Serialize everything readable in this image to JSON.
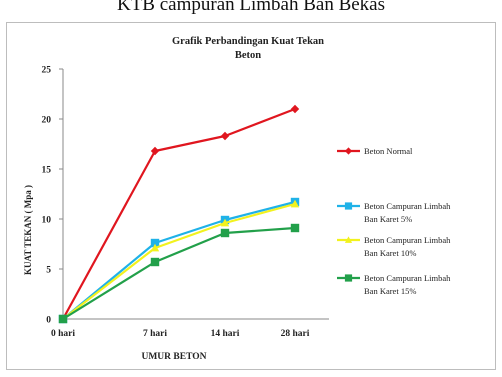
{
  "caption": "KTB campuran Limbah Ban Bekas",
  "chart_data": {
    "type": "line",
    "title": "Grafik Perbandingan  Kuat Tekan Beton",
    "title_lines": [
      "Grafik Perbandingan  Kuat Tekan",
      "Beton"
    ],
    "xlabel": "UMUR  BETON",
    "ylabel": "KUAT  TEKAN  ( Mpa  )",
    "categories": [
      "0 hari",
      "7 hari",
      "14 hari",
      "28 hari"
    ],
    "ylim": [
      0,
      25
    ],
    "yticks": [
      "0",
      "5",
      "10",
      "15",
      "20",
      "25"
    ],
    "grid": false,
    "legend_position": "right",
    "series": [
      {
        "name": "Beton Normal",
        "name_lines": [
          "Beton Normal"
        ],
        "values": [
          0,
          16.8,
          18.3,
          21.0
        ],
        "color": "#e0161f",
        "marker": "diamond"
      },
      {
        "name": "Beton Campuran Limbah Ban Karet 5%",
        "name_lines": [
          "Beton Campuran Limbah",
          "Ban Karet 5%"
        ],
        "values": [
          0,
          7.6,
          9.9,
          11.7
        ],
        "color": "#1fb2e8",
        "marker": "square"
      },
      {
        "name": "Beton Campuran Limbah Ban Karet 10%",
        "name_lines": [
          "Beton Campuran Limbah",
          "Ban Karet 10%"
        ],
        "values": [
          0,
          7.1,
          9.6,
          11.5
        ],
        "color": "#f2f21e",
        "marker": "triangle"
      },
      {
        "name": "Beton Campuran Limbah Ban Karet 15%",
        "name_lines": [
          "Beton Campuran Limbah",
          "Ban Karet 15%"
        ],
        "values": [
          0,
          5.7,
          8.6,
          9.1
        ],
        "color": "#22a04a",
        "marker": "square"
      }
    ]
  }
}
